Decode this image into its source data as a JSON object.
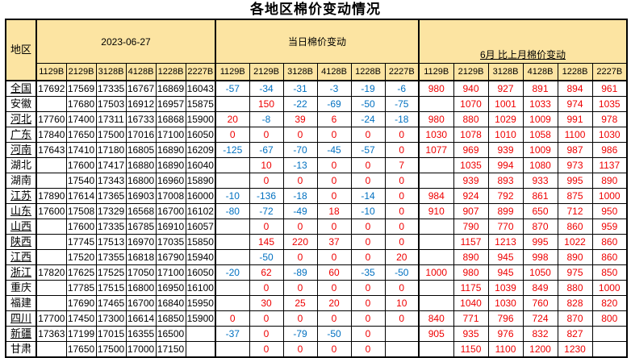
{
  "title": "各地区棉价变动情况",
  "colors": {
    "header_bg": "#FCE4A2",
    "positive_change": "#EE0000",
    "negative_change": "#0070C0",
    "price_text": "#000000",
    "border": "#000000"
  },
  "table": {
    "region_header": "地区",
    "group_headers": [
      "2023-06-27",
      "当日棉价变动",
      "6月 比上月棉价变动"
    ],
    "grade_codes": [
      "1129B",
      "2129B",
      "3128B",
      "4128B",
      "1228B",
      "2227B"
    ],
    "rows": [
      {
        "region": "全国",
        "underlined": true,
        "prices": [
          "17692",
          "17569",
          "17335",
          "16767",
          "16869",
          "16043"
        ],
        "daily_change": [
          "-57",
          "-34",
          "-31",
          "-3",
          "-19",
          "-6"
        ],
        "monthly_change": [
          "980",
          "940",
          "927",
          "891",
          "894",
          "961"
        ]
      },
      {
        "region": "安徽",
        "underlined": false,
        "prices": [
          "",
          "17680",
          "17503",
          "16912",
          "16957",
          "15875"
        ],
        "daily_change": [
          "",
          "150",
          "-22",
          "-69",
          "-50",
          "-75"
        ],
        "monthly_change": [
          "",
          "1070",
          "1001",
          "1033",
          "974",
          "1035"
        ]
      },
      {
        "region": "河北",
        "underlined": true,
        "prices": [
          "17760",
          "17400",
          "17311",
          "16733",
          "16868",
          "15900"
        ],
        "daily_change": [
          "20",
          "-8",
          "39",
          "6",
          "-24",
          "-18"
        ],
        "monthly_change": [
          "980",
          "880",
          "1029",
          "1009",
          "991",
          "978"
        ]
      },
      {
        "region": "广东",
        "underlined": true,
        "prices": [
          "17840",
          "17650",
          "17500",
          "17016",
          "17100",
          "16050"
        ],
        "daily_change": [
          "0",
          "0",
          "0",
          "0",
          "0",
          "0"
        ],
        "monthly_change": [
          "1030",
          "1078",
          "1010",
          "1058",
          "1100",
          "1030"
        ]
      },
      {
        "region": "河南",
        "underlined": true,
        "prices": [
          "17643",
          "17410",
          "17180",
          "16805",
          "16890",
          "16209"
        ],
        "daily_change": [
          "-125",
          "-67",
          "-70",
          "-45",
          "-57",
          "0"
        ],
        "monthly_change": [
          "1077",
          "969",
          "939",
          "1009",
          "987",
          "986"
        ]
      },
      {
        "region": "湖北",
        "underlined": false,
        "prices": [
          "",
          "17600",
          "17417",
          "16880",
          "16890",
          "16040"
        ],
        "daily_change": [
          "",
          "10",
          "-13",
          "0",
          "0",
          "7"
        ],
        "monthly_change": [
          "",
          "1035",
          "994",
          "1080",
          "973",
          "1137"
        ]
      },
      {
        "region": "湖南",
        "underlined": false,
        "prices": [
          "",
          "17540",
          "17343",
          "16800",
          "16960",
          "15890"
        ],
        "daily_change": [
          "",
          "0",
          "0",
          "0",
          "0",
          "0"
        ],
        "monthly_change": [
          "",
          "939",
          "893",
          "933",
          "995",
          "890"
        ]
      },
      {
        "region": "江苏",
        "underlined": true,
        "prices": [
          "17890",
          "17614",
          "17365",
          "16903",
          "17008",
          "16000"
        ],
        "daily_change": [
          "-10",
          "-136",
          "-18",
          "0",
          "-14",
          "0"
        ],
        "monthly_change": [
          "984",
          "924",
          "792",
          "861",
          "875",
          "1000"
        ]
      },
      {
        "region": "山东",
        "underlined": true,
        "prices": [
          "17600",
          "17508",
          "17329",
          "16568",
          "16700",
          "16102"
        ],
        "daily_change": [
          "-80",
          "-72",
          "-49",
          "18",
          "-10",
          "0"
        ],
        "monthly_change": [
          "910",
          "907",
          "899",
          "650",
          "712",
          "950"
        ]
      },
      {
        "region": "山西",
        "underlined": true,
        "prices": [
          "",
          "17600",
          "17335",
          "16785",
          "16910",
          "16057"
        ],
        "daily_change": [
          "",
          "0",
          "0",
          "0",
          "0",
          "0"
        ],
        "monthly_change": [
          "",
          "790",
          "770",
          "870",
          "860",
          "959"
        ]
      },
      {
        "region": "陕西",
        "underlined": true,
        "prices": [
          "",
          "17745",
          "17513",
          "16970",
          "17035",
          "15850"
        ],
        "daily_change": [
          "",
          "145",
          "220",
          "37",
          "0",
          "0"
        ],
        "monthly_change": [
          "",
          "1157",
          "1213",
          "995",
          "1022",
          "860"
        ]
      },
      {
        "region": "江西",
        "underlined": true,
        "prices": [
          "",
          "17520",
          "17355",
          "16818",
          "16790",
          "15940"
        ],
        "daily_change": [
          "",
          "-50",
          "0",
          "0",
          "0",
          "20"
        ],
        "monthly_change": [
          "",
          "890",
          "945",
          "998",
          "890",
          "860"
        ]
      },
      {
        "region": "浙江",
        "underlined": true,
        "prices": [
          "17820",
          "17625",
          "17525",
          "17050",
          "17100",
          "16050"
        ],
        "daily_change": [
          "-20",
          "62",
          "-89",
          "60",
          "-35",
          "-50"
        ],
        "monthly_change": [
          "1000",
          "980",
          "945",
          "1050",
          "975",
          "850"
        ]
      },
      {
        "region": "重庆",
        "underlined": false,
        "prices": [
          "",
          "17785",
          "17515",
          "16800",
          "16950",
          "16100"
        ],
        "daily_change": [
          "",
          "0",
          "0",
          "0",
          "0",
          "0"
        ],
        "monthly_change": [
          "",
          "1175",
          "1039",
          "849",
          "880",
          "1000"
        ]
      },
      {
        "region": "福建",
        "underlined": false,
        "prices": [
          "",
          "17690",
          "17465",
          "16700",
          "16840",
          "15950"
        ],
        "daily_change": [
          "",
          "30",
          "25",
          "20",
          "0",
          "10"
        ],
        "monthly_change": [
          "",
          "1040",
          "1030",
          "760",
          "828",
          "820"
        ]
      },
      {
        "region": "四川",
        "underlined": true,
        "prices": [
          "17700",
          "17450",
          "17300",
          "16614",
          "16850",
          "15900"
        ],
        "daily_change": [
          "0",
          "0",
          "0",
          "0",
          "0",
          "0"
        ],
        "monthly_change": [
          "840",
          "771",
          "796",
          "724",
          "870",
          "800"
        ]
      },
      {
        "region": "新疆",
        "underlined": true,
        "prices": [
          "17363",
          "17199",
          "17015",
          "16355",
          "16500",
          ""
        ],
        "daily_change": [
          "-37",
          "0",
          "-79",
          "-50",
          "0",
          ""
        ],
        "monthly_change": [
          "905",
          "935",
          "976",
          "832",
          "827",
          ""
        ]
      },
      {
        "region": "甘肃",
        "underlined": false,
        "prices": [
          "",
          "17650",
          "17500",
          "17000",
          "17150",
          ""
        ],
        "daily_change": [
          "",
          "0",
          "0",
          "0",
          "0",
          ""
        ],
        "monthly_change": [
          "",
          "1150",
          "1100",
          "1200",
          "1230",
          ""
        ]
      }
    ]
  }
}
